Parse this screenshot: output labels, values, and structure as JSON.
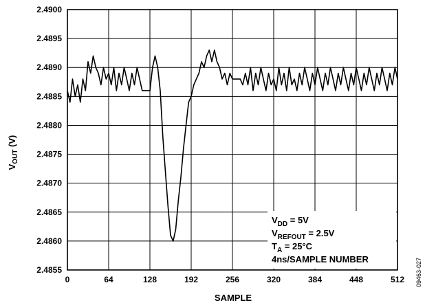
{
  "chart_data": {
    "type": "line",
    "title": "",
    "xlabel": "SAMPLE",
    "ylabel": {
      "main": "V",
      "sub": "OUT",
      "unit": " (V)"
    },
    "xlim": [
      0,
      512
    ],
    "ylim": [
      2.4855,
      2.49
    ],
    "x_ticks": [
      0,
      64,
      128,
      192,
      256,
      320,
      384,
      448,
      512
    ],
    "y_ticks": [
      2.4855,
      2.486,
      2.4865,
      2.487,
      2.4875,
      2.488,
      2.4885,
      2.489,
      2.4895,
      2.49
    ],
    "y_tick_labels": [
      "2.4855",
      "2.4860",
      "2.4865",
      "2.4870",
      "2.4875",
      "2.4880",
      "2.4885",
      "2.4890",
      "2.4895",
      "2.4900"
    ],
    "grid": true,
    "annotations": [
      {
        "main": "V",
        "sub": "DD",
        "rest": " = 5V"
      },
      {
        "main": "V",
        "sub": "REFOUT",
        "rest": " = 2.5V"
      },
      {
        "main": "T",
        "sub": "A",
        "rest": " = 25°C"
      },
      {
        "main": "",
        "sub": "",
        "rest": "4ns/SAMPLE NUMBER"
      }
    ],
    "series": [
      {
        "x": [
          0,
          4,
          8,
          12,
          16,
          20,
          24,
          28,
          32,
          36,
          40,
          44,
          48,
          52,
          56,
          60,
          64,
          68,
          72,
          76,
          80,
          84,
          88,
          92,
          96,
          100,
          104,
          108,
          112,
          116,
          120,
          124,
          128,
          132,
          136,
          140,
          144,
          148,
          152,
          156,
          160,
          164,
          168,
          172,
          176,
          180,
          184,
          188,
          192,
          196,
          200,
          204,
          208,
          212,
          216,
          220,
          224,
          228,
          232,
          236,
          240,
          244,
          248,
          252,
          256,
          260,
          264,
          268,
          272,
          276,
          280,
          284,
          288,
          292,
          296,
          300,
          304,
          308,
          312,
          316,
          320,
          324,
          328,
          332,
          336,
          340,
          344,
          348,
          352,
          356,
          360,
          364,
          368,
          372,
          376,
          380,
          384,
          388,
          392,
          396,
          400,
          404,
          408,
          412,
          416,
          420,
          424,
          428,
          432,
          436,
          440,
          444,
          448,
          452,
          456,
          460,
          464,
          468,
          472,
          476,
          480,
          484,
          488,
          492,
          496,
          500,
          504,
          508,
          512
        ],
        "values": [
          2.4886,
          2.4884,
          2.4888,
          2.4885,
          2.4887,
          2.4884,
          2.4888,
          2.4886,
          2.4891,
          2.4889,
          2.4892,
          2.489,
          2.4889,
          2.4887,
          2.489,
          2.4888,
          2.4889,
          2.4887,
          2.489,
          2.4886,
          2.4889,
          2.4887,
          2.489,
          2.4888,
          2.4886,
          2.4889,
          2.4887,
          2.489,
          2.4888,
          2.4886,
          2.4886,
          2.4886,
          2.4886,
          2.489,
          2.4892,
          2.489,
          2.4886,
          2.4878,
          2.4872,
          2.4866,
          2.4861,
          2.486,
          2.4862,
          2.4867,
          2.4871,
          2.4876,
          2.488,
          2.4884,
          2.4885,
          2.4887,
          2.4888,
          2.4889,
          2.4891,
          2.489,
          2.4892,
          2.4893,
          2.4891,
          2.4893,
          2.4891,
          2.489,
          2.4888,
          2.4889,
          2.4887,
          2.4889,
          2.4888,
          2.4888,
          2.4888,
          2.4888,
          2.4887,
          2.4889,
          2.4887,
          2.489,
          2.4886,
          2.4889,
          2.4887,
          2.489,
          2.4888,
          2.4886,
          2.4889,
          2.4887,
          2.4888,
          2.4886,
          2.489,
          2.4887,
          2.4889,
          2.4886,
          2.489,
          2.4887,
          2.4888,
          2.4886,
          2.4889,
          2.4887,
          2.489,
          2.4888,
          2.4886,
          2.4889,
          2.4887,
          2.489,
          2.4888,
          2.4886,
          2.4889,
          2.4887,
          2.489,
          2.4888,
          2.4886,
          2.4889,
          2.4887,
          2.489,
          2.4888,
          2.4886,
          2.4889,
          2.4887,
          2.489,
          2.4888,
          2.4886,
          2.4889,
          2.4887,
          2.489,
          2.4888,
          2.4886,
          2.4889,
          2.4887,
          2.489,
          2.4888,
          2.4886,
          2.4889,
          2.4887,
          2.489,
          2.4888
        ]
      }
    ]
  },
  "figure_id": "09463-027"
}
